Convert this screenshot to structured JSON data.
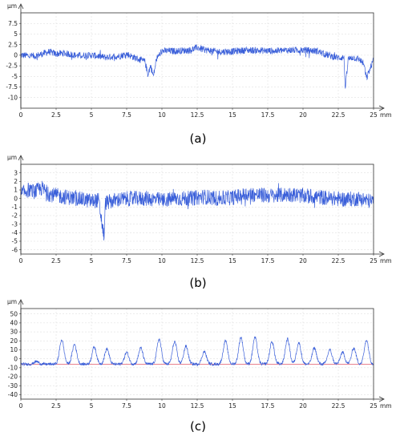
{
  "chart_data": [
    {
      "type": "line",
      "caption": "(a)",
      "ylabel": "µm",
      "xunit": "mm",
      "xlim": [
        0,
        25
      ],
      "ylim": [
        -12.5,
        10
      ],
      "xticks": [
        "0",
        "2.5",
        "5",
        "7.5",
        "10",
        "12.5",
        "15",
        "17.5",
        "20",
        "22.5",
        "25"
      ],
      "yticks": [
        "7.5",
        "5",
        "2.5",
        "0",
        "-2.5",
        "-5",
        "-7.5",
        "-10"
      ],
      "ytick_values": [
        7.5,
        5,
        2.5,
        0,
        -2.5,
        -5,
        -7.5,
        -10
      ],
      "line_color": "#3a5fd9",
      "series": [
        {
          "x": [
            0,
            1,
            2,
            2.5,
            3,
            4,
            5,
            6,
            7,
            7.5,
            8,
            8.8,
            9,
            9.2,
            9.4,
            9.6,
            10,
            11,
            12,
            12.5,
            13,
            14,
            15,
            16,
            17,
            18,
            19,
            20,
            21,
            21.5,
            22,
            22.5,
            22.9,
            23,
            23.2,
            23.5,
            24,
            24.3,
            24.5,
            25
          ],
          "y": [
            0,
            -0.2,
            0.8,
            0.3,
            0.5,
            -0.1,
            0,
            -0.5,
            -0.2,
            0.3,
            -0.5,
            -1.5,
            -4.5,
            -2.5,
            -5,
            -1,
            1,
            1,
            1.2,
            1.8,
            1.3,
            0.8,
            0.9,
            1.2,
            1.1,
            1,
            1.2,
            1.2,
            1,
            0.3,
            -0.2,
            -0.6,
            -0.5,
            -8,
            -1,
            -0.5,
            -1,
            -2,
            -5.5,
            -1
          ]
        }
      ]
    },
    {
      "type": "line",
      "caption": "(b)",
      "ylabel": "µm",
      "xunit": "mm",
      "xlim": [
        0,
        25
      ],
      "ylim": [
        -6.5,
        4
      ],
      "xticks": [
        "0",
        "2.5",
        "5",
        "7.5",
        "10",
        "12.5",
        "15",
        "17.5",
        "20",
        "22.5",
        "25"
      ],
      "yticks": [
        "3",
        "2",
        "1",
        "0",
        "-1",
        "-2",
        "-3",
        "-4",
        "-5",
        "-6"
      ],
      "ytick_values": [
        3,
        2,
        1,
        0,
        -1,
        -2,
        -3,
        -4,
        -5,
        -6
      ],
      "line_color": "#3a5fd9",
      "series": [
        {
          "x": [
            0,
            0.5,
            1,
            1.5,
            2,
            3,
            4,
            5,
            5.5,
            5.9,
            6,
            6.5,
            7,
            8,
            9,
            10,
            11,
            12,
            13,
            14,
            15,
            16,
            17,
            18,
            19,
            20,
            21,
            22,
            23,
            24,
            25
          ],
          "y": [
            0.5,
            1,
            0.8,
            1.2,
            0.5,
            0.2,
            0,
            -0.3,
            -0.2,
            -4.5,
            -0.5,
            -0.3,
            -0.1,
            0,
            0,
            -0.2,
            0,
            0,
            0.2,
            0,
            0.1,
            0.5,
            0.4,
            0.3,
            0.5,
            0.3,
            0.2,
            0,
            -0.1,
            0,
            -0.4
          ]
        }
      ]
    },
    {
      "type": "line",
      "caption": "(c)",
      "ylabel": "µm",
      "xunit": "mm",
      "xlim": [
        0,
        25
      ],
      "ylim": [
        -45,
        56
      ],
      "xticks": [
        "0",
        "2.5",
        "5",
        "7.5",
        "10",
        "12.5",
        "15",
        "17.5",
        "20",
        "22.5",
        "25"
      ],
      "yticks": [
        "50",
        "40",
        "30",
        "20",
        "10",
        "0",
        "-10",
        "-20",
        "-30",
        "-40"
      ],
      "ytick_values": [
        50,
        40,
        30,
        20,
        10,
        0,
        -10,
        -20,
        -30,
        -40
      ],
      "line_color": "#3a5fd9",
      "reference_line_color": "#e05a6a",
      "peaks": {
        "x": [
          1.1,
          2.9,
          3.8,
          5.2,
          6.1,
          7.5,
          8.5,
          9.8,
          10.9,
          11.7,
          13.0,
          14.5,
          15.6,
          16.6,
          17.8,
          18.9,
          19.7,
          20.8,
          21.9,
          22.8,
          23.6,
          24.5
        ],
        "y": [
          -3,
          21,
          16,
          13,
          11,
          7,
          12,
          22,
          19,
          14,
          8,
          20,
          24,
          24,
          19,
          22,
          18,
          12,
          10,
          7,
          12,
          21
        ]
      },
      "baseline": -6
    }
  ]
}
